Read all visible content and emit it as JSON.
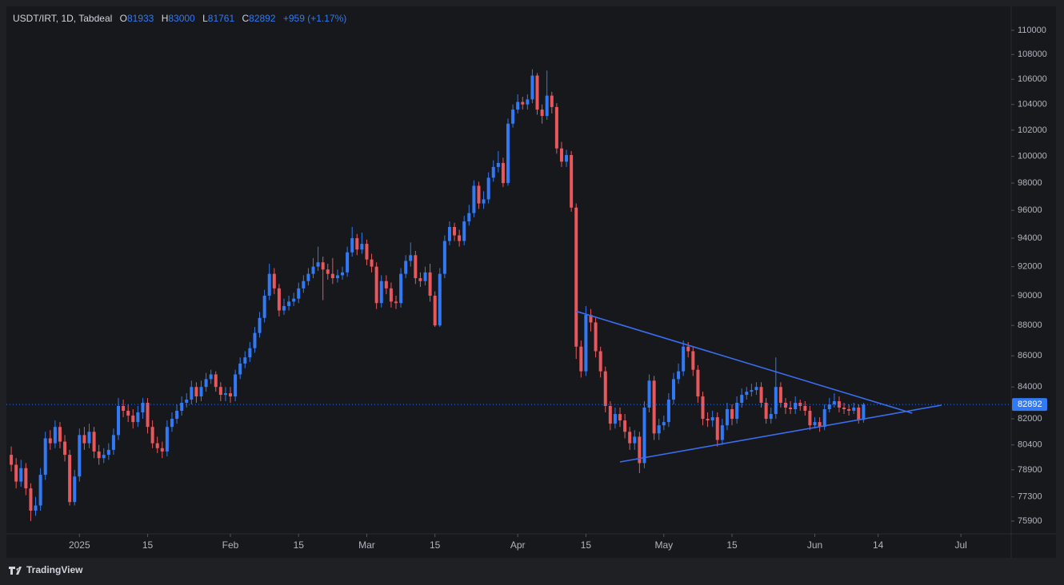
{
  "chart_data": {
    "type": "candlestick",
    "symbol": "USDT/IRT, 1D, Tabdeal",
    "ohlc_keys": [
      "O",
      "H",
      "L",
      "C"
    ],
    "change": "+959 (+1.17%)",
    "brand": "TradingView",
    "log_scale": true,
    "grid": false,
    "up_color": "#3179f5",
    "down_color": "#e8575c",
    "trendline_color": "#3a6df0",
    "xlim": [
      "2024-12-17",
      "2025-07-11"
    ],
    "ylim": [
      75170,
      111870
    ],
    "yticks": [
      75900,
      77300,
      78900,
      80400,
      82000,
      84000,
      86000,
      88000,
      90000,
      92000,
      94000,
      96000,
      98000,
      100000,
      102000,
      104000,
      106000,
      108000,
      110000
    ],
    "xticks": [
      {
        "value": "2025-01-01",
        "label": "2025"
      },
      {
        "value": "2025-01-15",
        "label": "15"
      },
      {
        "value": "2025-02-01",
        "label": "Feb"
      },
      {
        "value": "2025-02-15",
        "label": "15"
      },
      {
        "value": "2025-03-01",
        "label": "Mar"
      },
      {
        "value": "2025-03-15",
        "label": "15"
      },
      {
        "value": "2025-04-01",
        "label": "Apr"
      },
      {
        "value": "2025-04-15",
        "label": "15"
      },
      {
        "value": "2025-05-01",
        "label": "May"
      },
      {
        "value": "2025-05-15",
        "label": "15"
      },
      {
        "value": "2025-06-01",
        "label": "Jun"
      },
      {
        "value": "2025-06-14",
        "label": "14"
      },
      {
        "value": "2025-07-01",
        "label": "Jul"
      }
    ],
    "trendlines": [
      {
        "x": [
          "2025-04-13",
          "2025-06-21"
        ],
        "y": [
          88950,
          82350
        ]
      },
      {
        "x": [
          "2025-04-22",
          "2025-06-27"
        ],
        "y": [
          79370,
          82850
        ]
      }
    ],
    "dates": [
      "2024-12-18",
      "2024-12-19",
      "2024-12-20",
      "2024-12-21",
      "2024-12-22",
      "2024-12-23",
      "2024-12-24",
      "2024-12-25",
      "2024-12-26",
      "2024-12-27",
      "2024-12-28",
      "2024-12-29",
      "2024-12-30",
      "2024-12-31",
      "2025-01-01",
      "2025-01-02",
      "2025-01-03",
      "2025-01-04",
      "2025-01-05",
      "2025-01-06",
      "2025-01-07",
      "2025-01-08",
      "2025-01-09",
      "2025-01-10",
      "2025-01-11",
      "2025-01-12",
      "2025-01-13",
      "2025-01-14",
      "2025-01-15",
      "2025-01-16",
      "2025-01-17",
      "2025-01-18",
      "2025-01-19",
      "2025-01-20",
      "2025-01-21",
      "2025-01-22",
      "2025-01-23",
      "2025-01-24",
      "2025-01-25",
      "2025-01-26",
      "2025-01-27",
      "2025-01-28",
      "2025-01-29",
      "2025-01-30",
      "2025-01-31",
      "2025-02-01",
      "2025-02-02",
      "2025-02-03",
      "2025-02-04",
      "2025-02-05",
      "2025-02-06",
      "2025-02-07",
      "2025-02-08",
      "2025-02-09",
      "2025-02-10",
      "2025-02-11",
      "2025-02-12",
      "2025-02-13",
      "2025-02-14",
      "2025-02-15",
      "2025-02-16",
      "2025-02-17",
      "2025-02-18",
      "2025-02-19",
      "2025-02-20",
      "2025-02-21",
      "2025-02-22",
      "2025-02-23",
      "2025-02-24",
      "2025-02-25",
      "2025-02-26",
      "2025-02-27",
      "2025-02-28",
      "2025-03-01",
      "2025-03-02",
      "2025-03-03",
      "2025-03-04",
      "2025-03-05",
      "2025-03-06",
      "2025-03-07",
      "2025-03-08",
      "2025-03-09",
      "2025-03-10",
      "2025-03-11",
      "2025-03-12",
      "2025-03-13",
      "2025-03-14",
      "2025-03-15",
      "2025-03-16",
      "2025-03-17",
      "2025-03-18",
      "2025-03-19",
      "2025-03-20",
      "2025-03-21",
      "2025-03-22",
      "2025-03-23",
      "2025-03-24",
      "2025-03-25",
      "2025-03-26",
      "2025-03-27",
      "2025-03-28",
      "2025-03-29",
      "2025-03-30",
      "2025-03-31",
      "2025-04-01",
      "2025-04-02",
      "2025-04-03",
      "2025-04-04",
      "2025-04-05",
      "2025-04-06",
      "2025-04-07",
      "2025-04-08",
      "2025-04-09",
      "2025-04-10",
      "2025-04-11",
      "2025-04-12",
      "2025-04-13",
      "2025-04-14",
      "2025-04-15",
      "2025-04-16",
      "2025-04-17",
      "2025-04-18",
      "2025-04-19",
      "2025-04-20",
      "2025-04-21",
      "2025-04-22",
      "2025-04-23",
      "2025-04-24",
      "2025-04-25",
      "2025-04-26",
      "2025-04-27",
      "2025-04-28",
      "2025-04-29",
      "2025-04-30",
      "2025-05-01",
      "2025-05-02",
      "2025-05-03",
      "2025-05-04",
      "2025-05-05",
      "2025-05-06",
      "2025-05-07",
      "2025-05-08",
      "2025-05-09",
      "2025-05-10",
      "2025-05-11",
      "2025-05-12",
      "2025-05-13",
      "2025-05-14",
      "2025-05-15",
      "2025-05-16",
      "2025-05-17",
      "2025-05-18",
      "2025-05-19",
      "2025-05-20",
      "2025-05-21",
      "2025-05-22",
      "2025-05-23",
      "2025-05-24",
      "2025-05-25",
      "2025-05-26",
      "2025-05-27",
      "2025-05-28",
      "2025-05-29",
      "2025-05-30",
      "2025-05-31",
      "2025-06-01",
      "2025-06-02",
      "2025-06-03",
      "2025-06-04",
      "2025-06-05",
      "2025-06-06",
      "2025-06-07",
      "2025-06-08",
      "2025-06-09",
      "2025-06-10",
      "2025-06-11"
    ],
    "open": [
      79800,
      79200,
      78200,
      79000,
      77800,
      76500,
      76800,
      78600,
      80800,
      80500,
      81500,
      80600,
      79800,
      77000,
      78500,
      81000,
      80500,
      81200,
      80000,
      79600,
      79800,
      80100,
      81000,
      82800,
      82500,
      82200,
      81800,
      82400,
      83000,
      81500,
      80500,
      80200,
      80000,
      81500,
      82000,
      82500,
      83000,
      83200,
      84000,
      83400,
      84000,
      84500,
      84800,
      84000,
      83500,
      83600,
      83400,
      84800,
      85500,
      85900,
      86500,
      87500,
      88500,
      90000,
      91500,
      90500,
      89000,
      89300,
      89600,
      89800,
      90500,
      91000,
      91500,
      92000,
      92300,
      91800,
      91500,
      91200,
      91400,
      91600,
      93000,
      94000,
      93200,
      93600,
      92500,
      92000,
      89500,
      91000,
      90500,
      89600,
      89500,
      91500,
      92400,
      92800,
      91200,
      91000,
      91600,
      90000,
      88000,
      91500,
      93800,
      94800,
      94200,
      93800,
      95200,
      95800,
      97800,
      96500,
      96800,
      98400,
      99200,
      99500,
      98000,
      102500,
      103600,
      104200,
      104000,
      104400,
      106300,
      103600,
      103100,
      104700,
      103800,
      100600,
      99600,
      100100,
      96200,
      86600,
      85000,
      88700,
      88200,
      86300,
      85000,
      82800,
      81700,
      82300,
      81900,
      81200,
      80500,
      80900,
      79300,
      82700,
      84400,
      81100,
      81600,
      81800,
      83200,
      84500,
      85000,
      86600,
      86300,
      85100,
      83400,
      82000,
      81900,
      82100,
      80700,
      81600,
      82600,
      82000,
      83000,
      83500,
      83700,
      83800,
      84000,
      83000,
      82000,
      82300,
      84000,
      83000,
      82700,
      82600,
      83000,
      82800,
      82500,
      81600,
      81800,
      81500,
      82600,
      82900,
      83100,
      82700,
      82600,
      82500,
      82700,
      81933
    ],
    "high": [
      80300,
      79600,
      79500,
      79300,
      78100,
      77300,
      79000,
      81200,
      81300,
      81900,
      81800,
      81000,
      80100,
      78900,
      81400,
      81500,
      81700,
      81500,
      80400,
      80200,
      80500,
      81400,
      83300,
      83200,
      82900,
      82600,
      82800,
      83300,
      83300,
      81900,
      80900,
      80600,
      81900,
      82400,
      82900,
      83400,
      83600,
      84400,
      84300,
      84400,
      84900,
      85100,
      85000,
      84300,
      84000,
      84000,
      85100,
      85900,
      86300,
      86900,
      87900,
      88900,
      90400,
      92200,
      91900,
      90800,
      89800,
      90000,
      90200,
      90900,
      91400,
      91900,
      92600,
      93400,
      92700,
      92200,
      92600,
      91800,
      92000,
      93400,
      94800,
      94300,
      94400,
      93900,
      92900,
      92300,
      91400,
      91400,
      90900,
      90000,
      91900,
      92800,
      93700,
      93100,
      91600,
      92000,
      92200,
      90300,
      91900,
      94200,
      95200,
      95100,
      94600,
      95600,
      96400,
      98200,
      98100,
      97400,
      98800,
      99700,
      100400,
      99900,
      102900,
      104000,
      104800,
      104600,
      104800,
      106800,
      106500,
      104000,
      106700,
      105000,
      104100,
      101100,
      100500,
      100400,
      96500,
      87000,
      89300,
      89100,
      88500,
      86600,
      85300,
      83100,
      82700,
      82700,
      82300,
      81500,
      81300,
      81200,
      83100,
      84800,
      84700,
      82000,
      82200,
      83600,
      84900,
      85500,
      87000,
      86900,
      86600,
      85400,
      83700,
      82400,
      82500,
      82400,
      82000,
      83000,
      82900,
      83400,
      83900,
      84000,
      84200,
      84300,
      84300,
      83300,
      82700,
      85900,
      84300,
      83300,
      83100,
      83400,
      83200,
      83100,
      82800,
      82100,
      82100,
      82900,
      83300,
      83600,
      83400,
      83000,
      82900,
      83000,
      82900,
      83000
    ],
    "low": [
      78800,
      77800,
      77900,
      77400,
      75900,
      76200,
      76500,
      78300,
      80100,
      80200,
      80200,
      79400,
      76800,
      76800,
      78200,
      80100,
      80200,
      79600,
      79200,
      79300,
      79500,
      79800,
      80700,
      82100,
      81800,
      81400,
      81500,
      82000,
      81100,
      80200,
      79900,
      79600,
      79700,
      81200,
      81700,
      82200,
      82700,
      82900,
      83000,
      83100,
      83700,
      84200,
      83700,
      83100,
      83100,
      83000,
      83100,
      84500,
      85200,
      85600,
      86200,
      87200,
      88200,
      89700,
      90100,
      88600,
      88700,
      89000,
      89300,
      89500,
      90200,
      90700,
      91200,
      91700,
      89700,
      91100,
      90800,
      90900,
      91100,
      91300,
      92700,
      92800,
      92900,
      92100,
      91600,
      89100,
      89200,
      90100,
      89200,
      89100,
      89200,
      91200,
      92000,
      90800,
      90600,
      90700,
      89600,
      87900,
      87900,
      91200,
      93500,
      93800,
      93400,
      93500,
      94900,
      95500,
      96100,
      96100,
      96500,
      98100,
      98800,
      97700,
      97800,
      102200,
      103300,
      103600,
      103600,
      104100,
      103200,
      102500,
      102800,
      103300,
      100200,
      99200,
      99200,
      95900,
      85800,
      84600,
      84700,
      87600,
      85900,
      84600,
      82400,
      81300,
      81400,
      81500,
      80800,
      80100,
      80100,
      78700,
      79000,
      82400,
      80700,
      80700,
      81300,
      81500,
      82900,
      84200,
      84700,
      85900,
      84700,
      83000,
      81600,
      81500,
      81500,
      80300,
      80400,
      81300,
      81600,
      81700,
      82700,
      83200,
      83400,
      83500,
      82700,
      81700,
      81700,
      82000,
      82700,
      82300,
      82300,
      82300,
      82500,
      82200,
      81300,
      81400,
      81200,
      81300,
      82400,
      82700,
      82400,
      82300,
      82200,
      82300,
      81700,
      81761
    ],
    "close": [
      79200,
      78200,
      79000,
      77800,
      76500,
      76800,
      78600,
      80800,
      80500,
      81500,
      80600,
      79800,
      77000,
      78500,
      81000,
      80500,
      81200,
      80000,
      79600,
      79800,
      80100,
      81000,
      82800,
      82500,
      82200,
      81800,
      82400,
      83000,
      81500,
      80500,
      80200,
      80000,
      81500,
      82000,
      82500,
      83000,
      83200,
      84000,
      83400,
      84000,
      84500,
      84800,
      84000,
      83500,
      83600,
      83400,
      84800,
      85500,
      85900,
      86500,
      87500,
      88500,
      90000,
      91500,
      90500,
      89000,
      89300,
      89600,
      89800,
      90500,
      91000,
      91500,
      92000,
      92300,
      91800,
      91500,
      91200,
      91400,
      91600,
      93000,
      94000,
      93200,
      93600,
      92500,
      92000,
      89500,
      91000,
      90500,
      89600,
      89500,
      91500,
      92400,
      92800,
      91200,
      91000,
      91600,
      90000,
      88000,
      91500,
      93800,
      94800,
      94200,
      93800,
      95200,
      95800,
      97800,
      96500,
      96800,
      98400,
      99200,
      99500,
      98000,
      102500,
      103600,
      104200,
      104000,
      104400,
      106300,
      103600,
      103100,
      104700,
      103800,
      100600,
      99600,
      100100,
      96200,
      86600,
      85000,
      88700,
      88200,
      86300,
      85000,
      82800,
      81700,
      82300,
      81900,
      81200,
      80500,
      80900,
      79300,
      82700,
      84400,
      81100,
      81600,
      81800,
      83200,
      84500,
      85000,
      86600,
      86300,
      85100,
      83400,
      82000,
      81900,
      82100,
      80700,
      81600,
      82600,
      82000,
      83000,
      83500,
      83700,
      83800,
      84000,
      83000,
      82000,
      82300,
      84000,
      83000,
      82700,
      82600,
      83000,
      82800,
      82500,
      81600,
      81800,
      81500,
      82600,
      82900,
      83100,
      82700,
      82600,
      82500,
      82700,
      81933,
      82892
    ]
  }
}
